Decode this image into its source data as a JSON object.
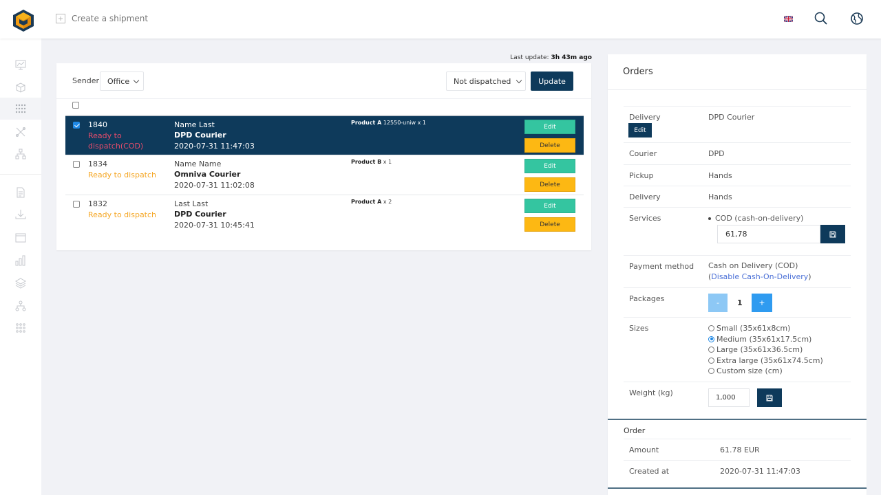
{
  "header": {
    "create_shipment_label": "Create a shipment",
    "language": "English"
  },
  "sidebar": {
    "items": [
      "dashboard-icon",
      "package-icon",
      "grid-icon",
      "tools-icon",
      "network-icon",
      "document-icon",
      "download-icon",
      "window-icon",
      "bar-chart-icon",
      "layers-icon",
      "hierarchy-icon",
      "apps-icon"
    ],
    "active_index": 2
  },
  "list": {
    "last_update_label": "Last update:",
    "last_update_value": "3h 43m ago",
    "sender_label": "Sender",
    "sender_value": "Office",
    "status_filter_value": "Not dispatched",
    "update_button": "Update",
    "orders": [
      {
        "id": "1840",
        "status": "Ready to dispatch(COD)",
        "status_color": "#e84c6b",
        "name": "Name Last",
        "courier": "DPD Courier",
        "date": "2020-07-31 11:47:03",
        "product_name": "Product A",
        "product_detail": "12550-uniw x 1",
        "selected": true
      },
      {
        "id": "1834",
        "status": "Ready to dispatch",
        "status_color": "#f5a623",
        "name": "Name Name",
        "courier": "Omniva Courier",
        "date": "2020-07-31 11:02:08",
        "product_name": "Product B",
        "product_detail": "x 1",
        "selected": false
      },
      {
        "id": "1832",
        "status": "Ready to dispatch",
        "status_color": "#f5a623",
        "name": "Last Last",
        "courier": "DPD Courier",
        "date": "2020-07-31 10:45:41",
        "product_name": "Product A",
        "product_detail": "x 2",
        "selected": false
      }
    ],
    "edit_label": "Edit",
    "delete_label": "Delete"
  },
  "panel": {
    "title": "Orders",
    "delivery_label": "Delivery",
    "delivery_value": "DPD Courier",
    "delivery_edit": "Edit",
    "courier_label": "Courier",
    "courier_value": "DPD",
    "pickup_label": "Pickup",
    "pickup_value": "Hands",
    "delivery2_label": "Delivery",
    "delivery2_value": "Hands",
    "services_label": "Services",
    "services_item": "COD (cash-on-delivery)",
    "cod_amount": "61,78",
    "payment_label": "Payment method",
    "payment_value": "Cash on Delivery (COD)",
    "disable_cod_link": "Disable Cash-On-Delivery",
    "packages_label": "Packages",
    "packages_minus": "-",
    "packages_value": "1",
    "packages_plus": "+",
    "sizes_label": "Sizes",
    "sizes": [
      {
        "label": "Small (35x61x8cm)",
        "checked": false
      },
      {
        "label": "Medium (35x61x17.5cm)",
        "checked": true
      },
      {
        "label": "Large (35x61x36.5cm)",
        "checked": false
      },
      {
        "label": "Extra large (35x61x74.5cm)",
        "checked": false
      },
      {
        "label": "Custom size (cm)",
        "checked": false
      }
    ],
    "weight_label": "Weight (kg)",
    "weight_value": "1,000",
    "order_section_title": "Order",
    "amount_label": "Amount",
    "amount_value": "61.78 EUR",
    "created_label": "Created at",
    "created_value": "2020-07-31 11:47:03"
  }
}
